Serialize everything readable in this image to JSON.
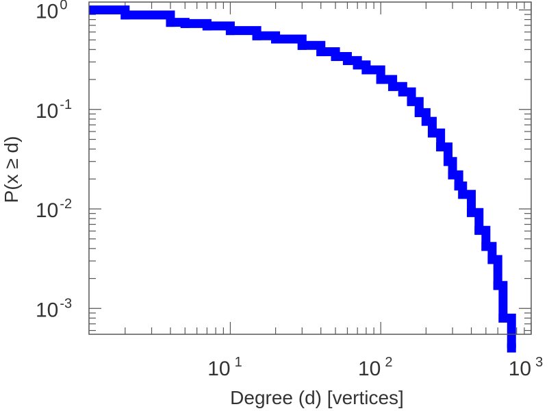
{
  "chart_data": {
    "type": "line",
    "scale": {
      "x": "log",
      "y": "log"
    },
    "xlabel": "Degree (d) [vertices]",
    "ylabel": "P(x ≥ d)",
    "xlim": [
      1.15,
      1000
    ],
    "ylim": [
      0.00055,
      1.2
    ],
    "grid": false,
    "legend": "none",
    "x_ticks": [
      {
        "base": "10",
        "exp": "1",
        "value": 10
      },
      {
        "base": "10",
        "exp": "2",
        "value": 100
      },
      {
        "base": "10",
        "exp": "3",
        "value": 1000
      }
    ],
    "y_ticks": [
      {
        "base": "10",
        "exp": "0",
        "value": 1
      },
      {
        "base": "10",
        "exp": "-1",
        "value": 0.1
      },
      {
        "base": "10",
        "exp": "-2",
        "value": 0.01
      },
      {
        "base": "10",
        "exp": "-3",
        "value": 0.001
      }
    ],
    "series": [
      {
        "color": "#0000ff",
        "points": [
          [
            1,
            1.0
          ],
          [
            2,
            0.89
          ],
          [
            4,
            0.75
          ],
          [
            5,
            0.73
          ],
          [
            7,
            0.69
          ],
          [
            10,
            0.62
          ],
          [
            15,
            0.55
          ],
          [
            20,
            0.51
          ],
          [
            30,
            0.44
          ],
          [
            40,
            0.38
          ],
          [
            50,
            0.34
          ],
          [
            60,
            0.31
          ],
          [
            70,
            0.28
          ],
          [
            80,
            0.25
          ],
          [
            100,
            0.2
          ],
          [
            120,
            0.17
          ],
          [
            140,
            0.15
          ],
          [
            160,
            0.12
          ],
          [
            180,
            0.093
          ],
          [
            200,
            0.076
          ],
          [
            220,
            0.058
          ],
          [
            250,
            0.042
          ],
          [
            280,
            0.03
          ],
          [
            300,
            0.022
          ],
          [
            330,
            0.017
          ],
          [
            350,
            0.014
          ],
          [
            400,
            0.0092
          ],
          [
            450,
            0.0061
          ],
          [
            500,
            0.0042
          ],
          [
            550,
            0.0031
          ],
          [
            600,
            0.0017
          ],
          [
            650,
            0.0008
          ],
          [
            740,
            0.0004
          ]
        ]
      }
    ]
  }
}
